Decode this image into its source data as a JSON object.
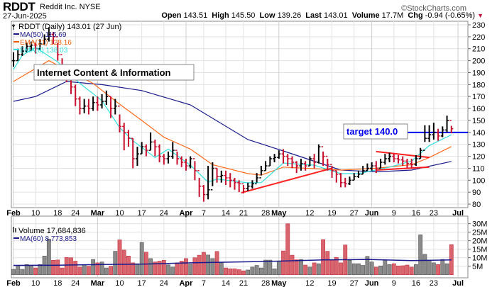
{
  "header": {
    "symbol": "RDDT",
    "company": "Reddit Inc. NYSE",
    "copyright": "©StockCharts.com",
    "date": "27-Jun-2025",
    "open_label": "Open",
    "open": "143.51",
    "high_label": "High",
    "high": "145.50",
    "low_label": "Low",
    "low": "139.26",
    "last_label": "Last",
    "last": "143.01",
    "volume_label": "Volume",
    "volume": "17.7M",
    "chg_label": "Chg",
    "chg": "-0.94 (-0.65%)",
    "chg_arrow": "▼"
  },
  "chart_data": {
    "type": "ohlc",
    "price_legend": {
      "main": "RDDT (Daily) 143.01 (27 Jun)",
      "ma50": "MA(50) 115.69",
      "ema21": "EMA(21) 128.16",
      "ema8": "EMA(8) 138.03"
    },
    "annotations": {
      "industry": "Internet Content & Information",
      "target_label": "target 140.0",
      "target_value": 140.0,
      "trendlines": [
        {
          "from": [
            51.5,
            89.5
          ],
          "to": [
            72,
            110
          ]
        },
        {
          "from": [
            82,
            124
          ],
          "to": [
            94,
            119
          ]
        },
        {
          "from": [
            82,
            108.5
          ],
          "to": [
            94,
            111
          ]
        }
      ]
    },
    "colors": {
      "up": "#000000",
      "down": "#c8102e",
      "ma50": "#1a1a8c",
      "ema21": "#ff6a1a",
      "ema8": "#33e0e0",
      "target": "#0000ee",
      "trend": "#ff2020",
      "vol_up": "#8a8a8a",
      "vol_down": "#d9646e"
    },
    "price_axis": {
      "min": 80,
      "max": 230,
      "step": 10
    },
    "x_ticks": [
      {
        "label": "Feb",
        "bar": 0,
        "bold": true
      },
      {
        "label": "10",
        "bar": 5
      },
      {
        "label": "18",
        "bar": 10
      },
      {
        "label": "24",
        "bar": 14
      },
      {
        "label": "Mar",
        "bar": 19,
        "bold": true
      },
      {
        "label": "10",
        "bar": 24
      },
      {
        "label": "17",
        "bar": 29
      },
      {
        "label": "24",
        "bar": 34
      },
      {
        "label": "Apr",
        "bar": 39,
        "bold": true
      },
      {
        "label": "7",
        "bar": 43
      },
      {
        "label": "14",
        "bar": 48
      },
      {
        "label": "21",
        "bar": 52
      },
      {
        "label": "28",
        "bar": 57
      },
      {
        "label": "May",
        "bar": 60,
        "bold": true
      },
      {
        "label": "12",
        "bar": 67
      },
      {
        "label": "19",
        "bar": 72
      },
      {
        "label": "27",
        "bar": 77
      },
      {
        "label": "Jun",
        "bar": 81,
        "bold": true
      },
      {
        "label": "9",
        "bar": 86
      },
      {
        "label": "16",
        "bar": 91
      },
      {
        "label": "23",
        "bar": 95
      },
      {
        "label": "Jul",
        "bar": 100.5,
        "bold": true
      }
    ],
    "close": [
      200,
      205,
      208,
      212,
      213,
      210,
      214,
      218,
      222,
      220,
      205,
      196,
      190,
      178,
      168,
      160,
      162,
      160,
      165,
      163,
      166,
      170,
      160,
      162,
      145,
      140,
      135,
      118,
      122,
      128,
      125,
      132,
      128,
      120,
      118,
      120,
      125,
      118,
      115,
      112,
      118,
      108,
      95,
      88,
      92,
      110,
      103,
      104,
      102,
      100,
      98,
      97,
      93,
      95,
      97,
      102,
      108,
      112,
      118,
      119,
      122,
      120,
      118,
      115,
      112,
      114,
      112,
      118,
      115,
      128,
      120,
      113,
      108,
      105,
      98,
      97,
      100,
      103,
      105,
      108,
      110,
      112,
      110,
      115,
      118,
      120,
      118,
      117,
      116,
      114,
      113,
      118,
      125,
      135,
      138,
      140,
      137,
      142,
      150,
      143.01
    ],
    "high": [
      207,
      210,
      212,
      215,
      216,
      215,
      218,
      222,
      228,
      224,
      215,
      202,
      196,
      190,
      180,
      170,
      168,
      168,
      170,
      170,
      172,
      175,
      170,
      168,
      155,
      148,
      142,
      135,
      128,
      132,
      130,
      140,
      134,
      130,
      122,
      124,
      132,
      124,
      120,
      118,
      120,
      116,
      102,
      96,
      112,
      115,
      110,
      108,
      108,
      106,
      102,
      100,
      96,
      98,
      100,
      106,
      112,
      116,
      120,
      122,
      125,
      126,
      122,
      120,
      116,
      118,
      116,
      120,
      122,
      130,
      124,
      118,
      112,
      108,
      106,
      102,
      103,
      106,
      108,
      112,
      114,
      115,
      116,
      118,
      122,
      123,
      122,
      121,
      120,
      118,
      118,
      121,
      127,
      146,
      146,
      148,
      143,
      145,
      154,
      145.5
    ],
    "low": [
      195,
      200,
      204,
      207,
      208,
      206,
      209,
      213,
      216,
      214,
      200,
      188,
      182,
      172,
      162,
      155,
      156,
      155,
      158,
      158,
      160,
      163,
      152,
      155,
      140,
      125,
      128,
      110,
      112,
      122,
      120,
      125,
      120,
      115,
      113,
      114,
      118,
      113,
      111,
      108,
      110,
      100,
      86,
      82,
      84,
      95,
      98,
      98,
      96,
      94,
      92,
      90,
      89,
      91,
      93,
      98,
      104,
      108,
      112,
      115,
      118,
      114,
      112,
      110,
      106,
      108,
      108,
      112,
      110,
      114,
      112,
      108,
      102,
      98,
      94,
      94,
      96,
      100,
      102,
      105,
      108,
      108,
      106,
      110,
      113,
      115,
      115,
      114,
      112,
      110,
      110,
      112,
      118,
      132,
      132,
      134,
      133,
      136,
      140,
      139.26
    ],
    "ma50": [
      [
        0,
        166
      ],
      [
        5,
        170
      ],
      [
        12,
        182.6
      ],
      [
        20,
        180
      ],
      [
        29,
        175
      ],
      [
        40,
        163
      ],
      [
        53,
        134
      ],
      [
        61,
        124.5
      ],
      [
        74,
        108.5
      ],
      [
        82,
        107
      ],
      [
        90,
        108.5
      ],
      [
        99,
        115.69
      ]
    ],
    "ema21": [
      [
        0,
        182.6
      ],
      [
        8,
        200
      ],
      [
        18,
        181
      ],
      [
        24,
        163.6
      ],
      [
        29,
        150
      ],
      [
        34,
        136
      ],
      [
        40,
        126
      ],
      [
        45,
        113
      ],
      [
        53,
        105.5
      ],
      [
        56,
        104.3
      ],
      [
        61,
        111
      ],
      [
        74,
        108.5
      ],
      [
        82,
        110
      ],
      [
        90,
        113
      ],
      [
        94,
        119
      ],
      [
        99,
        128.16
      ]
    ],
    "ema8": [
      [
        0,
        192.7
      ],
      [
        2,
        204.5
      ],
      [
        5,
        211
      ],
      [
        10,
        199
      ],
      [
        15,
        181
      ],
      [
        20,
        166.6
      ],
      [
        24,
        144
      ],
      [
        27,
        133
      ],
      [
        32,
        119
      ],
      [
        35,
        126
      ],
      [
        40,
        112.6
      ],
      [
        44,
        98.4
      ],
      [
        46,
        101
      ],
      [
        53,
        97.8
      ],
      [
        56,
        98
      ],
      [
        61,
        114.4
      ],
      [
        68,
        112.6
      ],
      [
        74,
        105.5
      ],
      [
        78,
        105.5
      ],
      [
        85,
        111
      ],
      [
        90,
        116
      ],
      [
        94,
        129
      ],
      [
        99,
        138.03
      ]
    ],
    "volume_panel": {
      "legend": "Volume 17,684,836",
      "ma_legend": "MA(60) 8,773,853",
      "axis_labels": [
        "30M",
        "25M",
        "20M",
        "15M",
        "10M",
        "5M"
      ],
      "axis_values": [
        30,
        25,
        20,
        15,
        10,
        5
      ],
      "unit": "M"
    },
    "volume": [
      3.2,
      5.5,
      3.2,
      6,
      5.5,
      4,
      6,
      11,
      21,
      8.5,
      8.7,
      4,
      10.2,
      10,
      8,
      4.5,
      6,
      5,
      9,
      7,
      7.5,
      4,
      5,
      13.8,
      20.5,
      14.5,
      11,
      7,
      6.5,
      19,
      13.3,
      9.5,
      7.5,
      8,
      8.5,
      5.8,
      4.5,
      7,
      8,
      9.5,
      6.3,
      10,
      11.5,
      13.2,
      11.6,
      9.5,
      13.7,
      7,
      4,
      3.5,
      3.5,
      3,
      2.3,
      2.8,
      4.5,
      5.5,
      4,
      8.6,
      8.6,
      3.5,
      8,
      14,
      30,
      11.5,
      8.8,
      9,
      5.7,
      4.5,
      7,
      6.5,
      20.7,
      13.8,
      8.5,
      10.2,
      7,
      17.5,
      8.5,
      6.5,
      6.5,
      5.5,
      10.8,
      7.5,
      4.5,
      5.2,
      8.5,
      6,
      6.5,
      5.2,
      5.3,
      5.7,
      4.5,
      6,
      23.5,
      12,
      8.7,
      7,
      6,
      9,
      6.5,
      17.7
    ],
    "volume_ma60": [
      [
        0,
        5.5
      ],
      [
        10,
        5.6
      ],
      [
        20,
        6
      ],
      [
        30,
        6.3
      ],
      [
        40,
        7
      ],
      [
        50,
        7.5
      ],
      [
        60,
        8
      ],
      [
        70,
        8.7
      ],
      [
        80,
        9
      ],
      [
        90,
        8.3
      ],
      [
        99,
        8.77
      ]
    ]
  }
}
